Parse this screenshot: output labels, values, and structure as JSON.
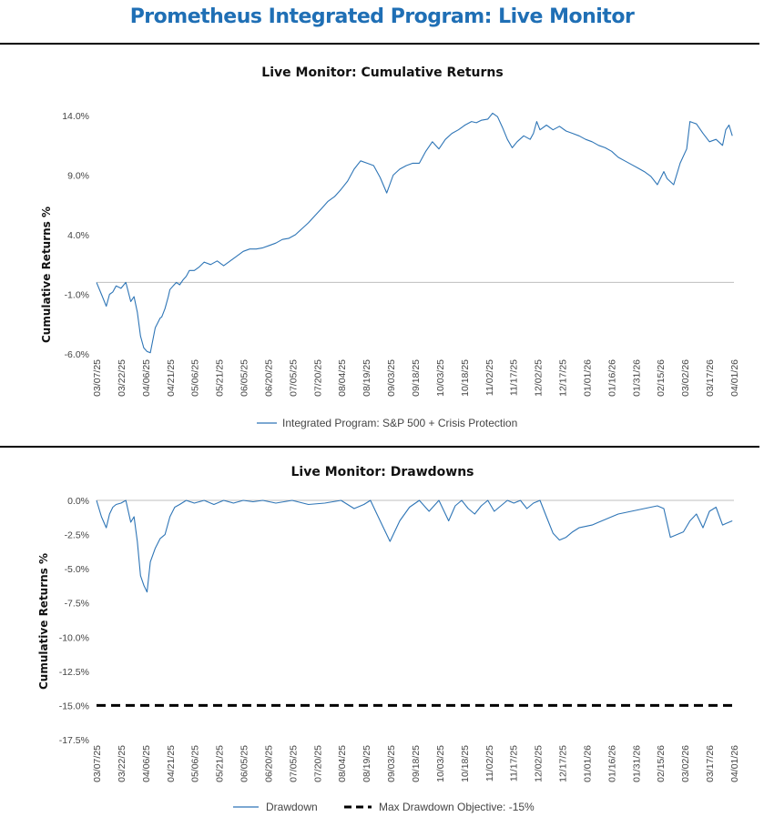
{
  "page": {
    "title": "Prometheus Integrated Program: Live Monitor"
  },
  "chart_data": [
    {
      "type": "line",
      "title": "Live Monitor: Cumulative Returns",
      "ylabel": "Cumulative Returns %",
      "xlabel": "",
      "ylim": [
        -6,
        14
      ],
      "yticks": [
        14,
        9,
        4,
        -1,
        -6
      ],
      "ytick_labels": [
        "14.0%",
        "9.0%",
        "4.0%",
        "-1.0%",
        "-6.0%"
      ],
      "x_tick_labels": [
        "03/07/25",
        "03/22/25",
        "04/06/25",
        "04/21/25",
        "05/06/25",
        "05/21/25",
        "06/05/25",
        "06/20/25",
        "07/05/25",
        "07/20/25",
        "08/04/25",
        "08/19/25",
        "09/03/25",
        "09/18/25",
        "10/03/25",
        "10/18/25",
        "11/02/25",
        "11/17/25",
        "12/02/25",
        "12/17/25",
        "01/01/26",
        "01/16/26",
        "01/31/26",
        "02/15/26",
        "03/02/26",
        "03/17/26",
        "04/01/26"
      ],
      "x_range_days": [
        0,
        391
      ],
      "legend": "bottom",
      "color": "#2e75b6",
      "series": [
        {
          "name": "Integrated Program: S&P 500 + Crisis Protection",
          "x": [
            0,
            3,
            6,
            8,
            10,
            12,
            15,
            18,
            21,
            23,
            25,
            27,
            29,
            31,
            33,
            36,
            39,
            40,
            42,
            44,
            45,
            47,
            49,
            51,
            53,
            55,
            57,
            60,
            63,
            66,
            70,
            74,
            78,
            82,
            86,
            90,
            94,
            98,
            102,
            106,
            110,
            114,
            118,
            122,
            126,
            130,
            134,
            138,
            142,
            146,
            150,
            154,
            158,
            162,
            166,
            170,
            174,
            178,
            182,
            186,
            190,
            194,
            198,
            202,
            206,
            210,
            214,
            218,
            222,
            226,
            230,
            233,
            236,
            240,
            243,
            246,
            249,
            252,
            255,
            258,
            262,
            266,
            268,
            270,
            272,
            276,
            280,
            284,
            288,
            292,
            296,
            300,
            304,
            308,
            312,
            316,
            320,
            324,
            328,
            332,
            336,
            340,
            344,
            348,
            350,
            354,
            358,
            362,
            364,
            368,
            372,
            376,
            380,
            384,
            386,
            388,
            390
          ],
          "values": [
            0,
            -1.0,
            -2.0,
            -1.0,
            -0.8,
            -0.3,
            -0.5,
            0,
            -1.6,
            -1.2,
            -2.5,
            -4.5,
            -5.5,
            -5.8,
            -5.9,
            -3.8,
            -3.0,
            -2.9,
            -2.2,
            -1.2,
            -0.6,
            -0.3,
            0,
            -0.2,
            0.2,
            0.5,
            1,
            1,
            1.3,
            1.7,
            1.5,
            1.8,
            1.4,
            1.8,
            2.2,
            2.6,
            2.8,
            2.8,
            2.9,
            3.1,
            3.3,
            3.6,
            3.7,
            4.0,
            4.5,
            5.0,
            5.6,
            6.2,
            6.8,
            7.2,
            7.8,
            8.5,
            9.5,
            10.2,
            10.0,
            9.8,
            8.8,
            7.5,
            9.0,
            9.5,
            9.8,
            10.0,
            10.0,
            11.0,
            11.8,
            11.2,
            12.0,
            12.5,
            12.8,
            13.2,
            13.5,
            13.4,
            13.6,
            13.7,
            14.2,
            13.9,
            13.0,
            12.0,
            11.3,
            11.8,
            12.3,
            12.0,
            12.5,
            13.5,
            12.8,
            13.2,
            12.8,
            13.1,
            12.7,
            12.5,
            12.3,
            12.0,
            11.8,
            11.5,
            11.3,
            11.0,
            10.5,
            10.2,
            9.9,
            9.6,
            9.3,
            8.9,
            8.2,
            9.3,
            8.7,
            8.2,
            10.0,
            11.2,
            13.5,
            13.3,
            12.5,
            11.8,
            12.0,
            11.5,
            12.8,
            13.2,
            12.3
          ]
        }
      ]
    },
    {
      "type": "line",
      "title": "Live Monitor: Drawdowns",
      "ylabel": "Cumulative Returns %",
      "xlabel": "",
      "ylim": [
        -17.5,
        0
      ],
      "yticks": [
        0,
        -2.5,
        -5,
        -7.5,
        -10,
        -12.5,
        -15,
        -17.5
      ],
      "ytick_labels": [
        "0.0%",
        "-2.5%",
        "-5.0%",
        "-7.5%",
        "-10.0%",
        "-12.5%",
        "-15.0%",
        "-17.5%"
      ],
      "x_tick_labels": [
        "03/07/25",
        "03/22/25",
        "04/06/25",
        "04/21/25",
        "05/06/25",
        "05/21/25",
        "06/05/25",
        "06/20/25",
        "07/05/25",
        "07/20/25",
        "08/04/25",
        "08/19/25",
        "09/03/25",
        "09/18/25",
        "10/03/25",
        "10/18/25",
        "11/02/25",
        "11/17/25",
        "12/02/25",
        "12/17/25",
        "01/01/26",
        "01/16/26",
        "01/31/26",
        "02/15/26",
        "03/02/26",
        "03/17/26",
        "04/01/26"
      ],
      "x_range_days": [
        0,
        391
      ],
      "legend": "bottom",
      "series": [
        {
          "name": "Drawdown",
          "color": "#2e75b6",
          "style": "solid",
          "x": [
            0,
            3,
            6,
            8,
            10,
            12,
            15,
            18,
            21,
            23,
            25,
            27,
            29,
            31,
            33,
            36,
            39,
            42,
            45,
            48,
            51,
            55,
            60,
            66,
            72,
            78,
            84,
            90,
            96,
            102,
            110,
            120,
            130,
            140,
            150,
            158,
            164,
            168,
            172,
            176,
            180,
            186,
            192,
            198,
            204,
            210,
            216,
            220,
            224,
            228,
            232,
            236,
            240,
            244,
            248,
            252,
            256,
            260,
            264,
            268,
            272,
            276,
            280,
            284,
            288,
            292,
            296,
            300,
            304,
            308,
            312,
            316,
            320,
            324,
            328,
            332,
            336,
            340,
            344,
            348,
            352,
            356,
            360,
            364,
            368,
            372,
            376,
            380,
            384,
            386,
            388,
            390
          ],
          "values": [
            0,
            -1.2,
            -2.0,
            -1.0,
            -0.5,
            -0.3,
            -0.2,
            0,
            -1.6,
            -1.2,
            -3.0,
            -5.5,
            -6.2,
            -6.7,
            -4.5,
            -3.5,
            -2.8,
            -2.5,
            -1.2,
            -0.5,
            -0.3,
            0,
            -0.2,
            0,
            -0.3,
            0,
            -0.2,
            0,
            -0.1,
            0,
            -0.2,
            0,
            -0.3,
            -0.2,
            0,
            -0.6,
            -0.3,
            0,
            -1.0,
            -2.0,
            -3.0,
            -1.5,
            -0.5,
            0,
            -0.8,
            0,
            -1.5,
            -0.4,
            0,
            -0.6,
            -1.0,
            -0.4,
            0,
            -0.8,
            -0.4,
            0,
            -0.2,
            0,
            -0.6,
            -0.2,
            0,
            -1.2,
            -2.4,
            -2.9,
            -2.7,
            -2.3,
            -2.0,
            -1.9,
            -1.8,
            -1.6,
            -1.4,
            -1.2,
            -1.0,
            -0.9,
            -0.8,
            -0.7,
            -0.6,
            -0.5,
            -0.4,
            -0.6,
            -2.7,
            -2.5,
            -2.3,
            -1.5,
            -1.0,
            -2.0,
            -0.8,
            -0.5,
            -1.8,
            -1.7,
            -1.6,
            -1.5
          ]
        },
        {
          "name": "Max Drawdown Objective: -15%",
          "color": "#000000",
          "style": "dashed",
          "x": [
            0,
            390
          ],
          "values": [
            -15,
            -15
          ]
        }
      ]
    }
  ]
}
